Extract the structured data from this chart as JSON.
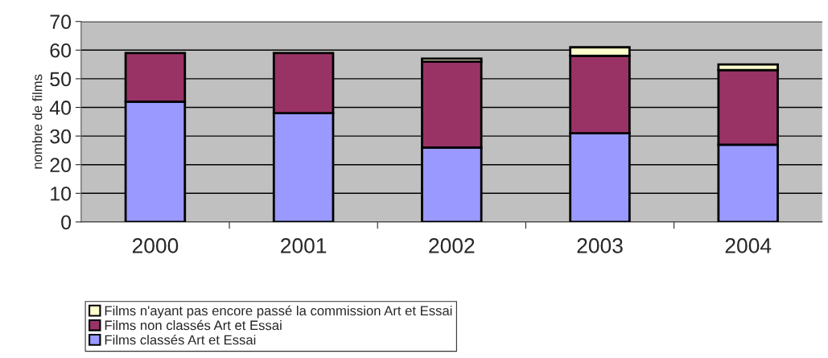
{
  "chart_data": {
    "type": "bar",
    "stacked": true,
    "ylabel": "nombre de films",
    "categories": [
      "2000",
      "2001",
      "2002",
      "2003",
      "2004"
    ],
    "series": [
      {
        "name": "Films classés Art et Essai",
        "color": "#9999ff",
        "values": [
          42,
          38,
          26,
          31,
          27
        ]
      },
      {
        "name": "Films non classés Art et Essai",
        "color": "#993366",
        "values": [
          17,
          21,
          30,
          27,
          26
        ]
      },
      {
        "name": "Films n'ayant pas encore passé la commission Art et Essai",
        "color": "#ffffcc",
        "values": [
          null,
          null,
          1,
          3,
          2
        ]
      }
    ],
    "ylim": [
      0,
      70
    ],
    "yticks": [
      0,
      10,
      20,
      30,
      40,
      50,
      60,
      70
    ],
    "grid": "y",
    "legend": "bottom left"
  }
}
